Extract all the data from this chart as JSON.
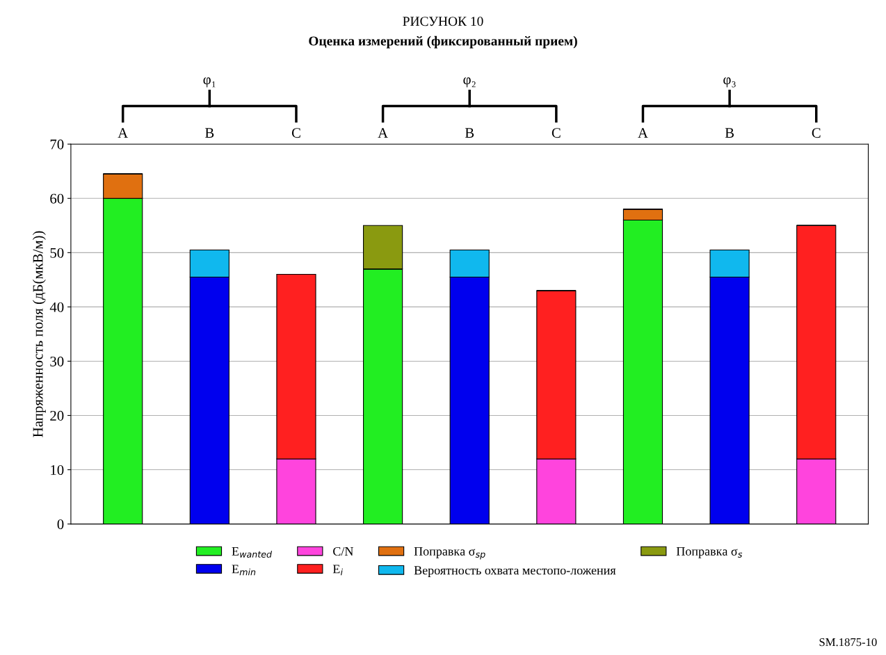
{
  "chart_data": {
    "type": "bar",
    "stacked": true,
    "title": "РИСУНОК 10",
    "subtitle": "Оценка измерений (фиксированный прием)",
    "ylabel": "Напряженность поля (дБ(мкВ/м))",
    "categories": [
      "A",
      "B",
      "C",
      "A",
      "B",
      "C",
      "A",
      "B",
      "C"
    ],
    "series": [
      {
        "name": "E$_{wanted}$",
        "color": "#22ee22",
        "values": [
          60,
          null,
          null,
          47,
          null,
          null,
          56,
          null,
          null
        ]
      },
      {
        "name": "E$_{min}$",
        "color": "#0000ee",
        "values": [
          null,
          45.5,
          null,
          null,
          45.5,
          null,
          null,
          45.5,
          null
        ]
      },
      {
        "name": "C/N",
        "color": "#ff44dd",
        "values": [
          null,
          null,
          12,
          null,
          null,
          12,
          null,
          null,
          12
        ]
      },
      {
        "name": "E$_{i}$",
        "color": "#ff2020",
        "values": [
          null,
          null,
          34,
          null,
          null,
          31,
          null,
          null,
          43
        ]
      },
      {
        "name": "Поправка σ$_{sp}$",
        "color": "#e07010",
        "values": [
          4.5,
          null,
          null,
          null,
          null,
          null,
          2,
          null,
          null
        ]
      },
      {
        "name": "Вероятность охвата местопо-ложения",
        "color": "#10b8ee",
        "values": [
          null,
          5,
          null,
          null,
          5,
          null,
          null,
          5,
          null
        ]
      },
      {
        "name": "Поправка σ$_{s}$",
        "color": "#8a9a10",
        "values": [
          null,
          null,
          null,
          8,
          null,
          null,
          null,
          null,
          null
        ]
      }
    ],
    "annotations": [
      "φ₁",
      "φ₂",
      "φ₃",
      "SM.1875-10"
    ],
    "ylim": [
      0,
      70
    ],
    "yticks": [
      0,
      10,
      20,
      30,
      40,
      50,
      60,
      70
    ],
    "grid": "y",
    "legend": "bottom"
  }
}
